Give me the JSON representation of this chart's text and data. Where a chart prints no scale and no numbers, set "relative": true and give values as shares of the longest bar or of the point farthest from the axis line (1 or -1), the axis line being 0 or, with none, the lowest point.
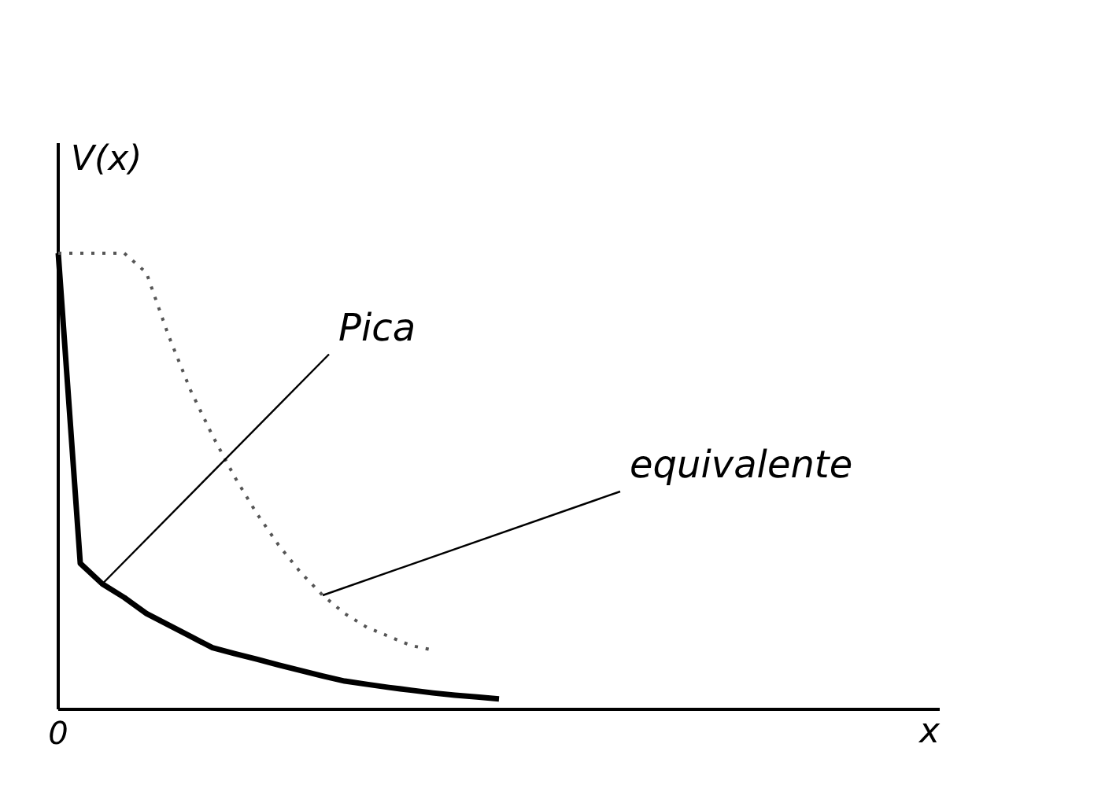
{
  "chart_data": {
    "type": "line",
    "relative": true,
    "xlabel": "x",
    "ylabel": "V(x)",
    "grid": false,
    "categories": [
      null,
      null,
      null,
      null,
      null,
      null,
      null,
      null,
      null,
      null,
      null,
      null,
      null,
      null,
      null,
      null,
      null,
      null,
      null,
      null,
      null,
      null,
      null,
      null,
      null,
      null,
      null,
      null,
      null,
      null,
      null,
      null,
      null,
      null,
      null,
      null,
      null,
      null,
      null,
      null,
      null
    ],
    "series": [
      {
        "color": "#000000",
        "line_style": "solid",
        "values": [
          1,
          0.32,
          0.275,
          0.245,
          0.21,
          0.185,
          0.16,
          0.135,
          0.122,
          0.11,
          0.097,
          0.085,
          0.073,
          0.062,
          0.055,
          0.048,
          0.042,
          0.036,
          0.031,
          0.027,
          0.023,
          null,
          null,
          null,
          null,
          null,
          null,
          null,
          null,
          null,
          null,
          null,
          null,
          null,
          null,
          null,
          null,
          null,
          null,
          null,
          null
        ]
      },
      {
        "color": "#555555",
        "line_style": "dotted",
        "values": [
          1,
          1,
          1,
          1,
          0.957,
          0.82,
          0.7,
          0.6,
          0.51,
          0.43,
          0.36,
          0.3,
          0.25,
          0.21,
          0.18,
          0.16,
          0.14,
          0.13,
          null,
          null,
          null,
          null,
          null,
          null,
          null,
          null,
          null,
          null,
          null,
          null,
          null,
          null,
          null,
          null,
          null,
          null,
          null,
          null,
          null,
          null,
          null
        ]
      }
    ],
    "annotations": [
      "Pica",
      "equivalente",
      "0"
    ]
  }
}
